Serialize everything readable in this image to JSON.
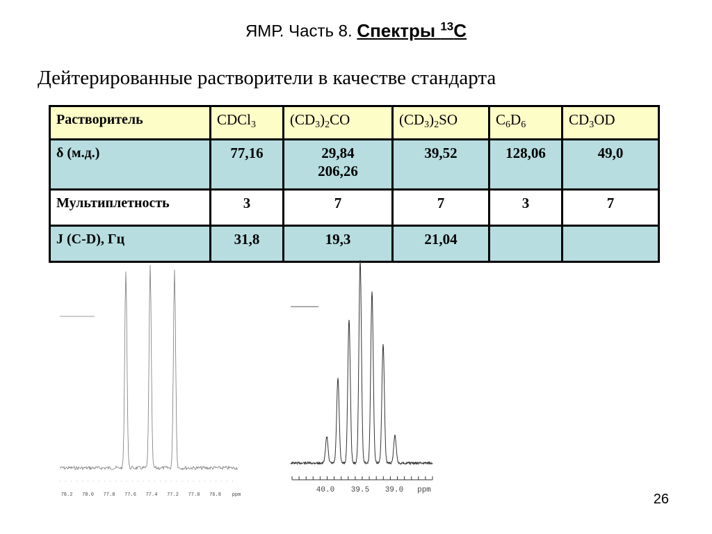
{
  "title": {
    "prefix": "ЯМР. Часть 8",
    "dot": ".",
    "main": "Спектры ",
    "isotope": "13",
    "element": "C"
  },
  "subtitle": "Дейтерированные растворители в качестве стандарта",
  "table": {
    "header": {
      "label": "Растворитель",
      "solvents": [
        {
          "parts": [
            "CDCl",
            "3",
            ""
          ]
        },
        {
          "parts": [
            "(CD",
            "3",
            ")",
            "2",
            "CO"
          ]
        },
        {
          "parts": [
            "(CD",
            "3",
            ")",
            "2",
            "SO"
          ]
        },
        {
          "parts": [
            "C",
            "6",
            "D",
            "6",
            ""
          ]
        },
        {
          "parts": [
            "CD",
            "3",
            "OD"
          ]
        }
      ]
    },
    "rows": [
      {
        "label": "δ (м.д.)",
        "values": [
          "77,16",
          "29,84\n206,26",
          "39,52",
          "128,06",
          "49,0"
        ]
      },
      {
        "label": "Мультиплетность",
        "values": [
          "3",
          "7",
          "7",
          "3",
          "7"
        ]
      },
      {
        "label": "J (C-D), Гц",
        "values": [
          "31,8",
          "19,3",
          "21,04",
          "",
          ""
        ]
      }
    ]
  },
  "spectrum_left": {
    "axis_labels": [
      "78.2",
      "78.0",
      "77.8",
      "77.6",
      "77.4",
      "77.2",
      "77.0",
      "76.8",
      "ppm"
    ]
  },
  "spectrum_right": {
    "axis_labels": [
      "40.0",
      "39.5",
      "39.0",
      "ppm"
    ]
  },
  "page_number": "26"
}
